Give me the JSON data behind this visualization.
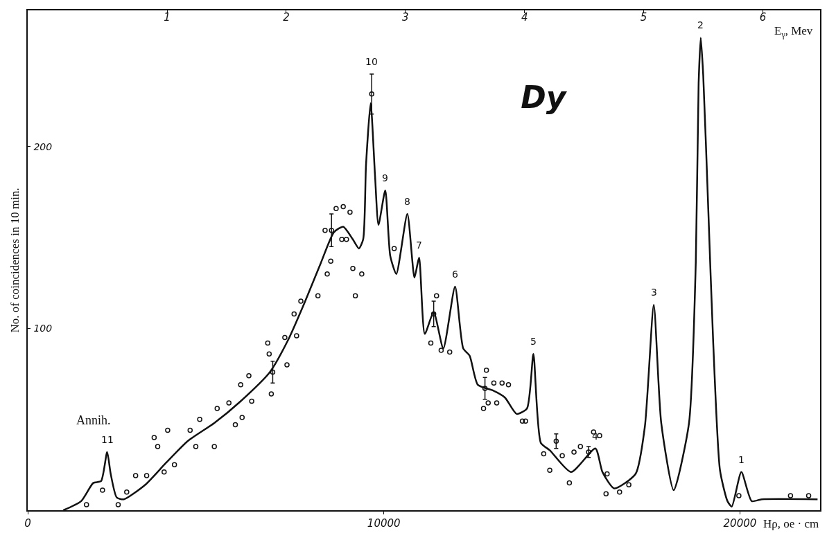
{
  "chart_data": {
    "type": "line",
    "title": "Dy",
    "xlabel": "Hρ, oe · cm",
    "ylabel": "No. of coincidences in 10 min.",
    "x2label": "E$_{γ}$, Mev",
    "xlim": [
      0,
      22250
    ],
    "xticks": [
      0,
      10000,
      20000
    ],
    "x2lim": [
      -0.17,
      6.48
    ],
    "x2ticks": [
      1,
      2,
      3,
      4,
      5,
      6
    ],
    "ylim": [
      0,
      275
    ],
    "yticks": [
      100,
      200
    ],
    "series": [
      {
        "color": "#111111",
        "marker": "none",
        "line_style": "solid",
        "x": [
          1000,
          1500,
          1840,
          2060,
          2230,
          2330,
          2500,
          2700,
          3300,
          3880,
          4490,
          5240,
          5980,
          6800,
          7320,
          7770,
          8230,
          8600,
          8860,
          9130,
          9300,
          9420,
          9500,
          9630,
          9750,
          9850,
          10040,
          10180,
          10350,
          10660,
          10860,
          10990,
          11150,
          11400,
          11670,
          12000,
          12230,
          12410,
          12640,
          13050,
          13400,
          13730,
          14020,
          14200,
          14410,
          14660,
          15260,
          15940,
          16140,
          16470,
          17070,
          17330,
          17580,
          17790,
          18140,
          18570,
          18760,
          18840,
          18900,
          18970,
          19110,
          19250,
          19440,
          19650,
          19770,
          20040,
          20330,
          20610,
          22180
        ],
        "values": [
          0,
          5,
          15,
          16,
          32,
          20,
          7,
          6,
          14,
          26,
          38,
          48,
          60,
          76,
          94,
          114,
          136,
          153,
          156,
          149,
          144,
          149,
          190,
          224,
          185,
          157,
          176,
          140,
          130,
          163,
          128,
          139,
          97,
          109,
          89,
          123,
          89,
          85,
          69,
          66,
          62,
          53,
          56,
          86,
          37,
          33,
          21,
          34,
          21,
          12,
          20,
          46,
          113,
          48,
          11,
          48,
          136,
          235,
          260,
          239,
          166,
          92,
          22,
          5,
          2,
          21,
          5,
          6,
          6
        ]
      },
      {
        "type": "scatter",
        "color": "#111111",
        "marker": "circle",
        "x": [
          1650,
          2100,
          2540,
          2780,
          3030,
          3340,
          3550,
          3650,
          3930,
          3830,
          4120,
          4560,
          4720,
          4830,
          5240,
          5320,
          5650,
          5830,
          6020,
          5980,
          6210,
          6290,
          6740,
          6780,
          6840,
          7280,
          7220,
          7550,
          7670,
          7480,
          8150,
          8410,
          9200,
          9380,
          8350,
          8660,
          8860,
          9050,
          8510,
          8820,
          8950,
          9130,
          10290,
          11480,
          11610,
          11850,
          11320,
          12880,
          12800,
          12930,
          13170,
          13090,
          13320,
          13500,
          13890,
          13980,
          14490,
          14660,
          15010,
          15210,
          15340,
          15520,
          15890,
          16060,
          16270,
          16240,
          16620,
          16880,
          19970,
          21420,
          21930
        ],
        "values": [
          3,
          11,
          3,
          10,
          19,
          19,
          40,
          35,
          44,
          21,
          25,
          44,
          35,
          50,
          35,
          56,
          59,
          47,
          51,
          69,
          74,
          60,
          92,
          86,
          64,
          80,
          95,
          96,
          115,
          108,
          118,
          130,
          118,
          130,
          154,
          166,
          167,
          164,
          137,
          149,
          149,
          133,
          144,
          118,
          88,
          87,
          92,
          77,
          56,
          59,
          59,
          70,
          70,
          69,
          49,
          49,
          31,
          22,
          30,
          15,
          32,
          35,
          43,
          41,
          20,
          9,
          10,
          14,
          8,
          8,
          8
        ]
      },
      {
        "type": "scatter",
        "color": "#111111",
        "marker": "circle",
        "x": [
          6880,
          8530,
          9660,
          11400,
          12840,
          14840,
          15750
        ],
        "values": [
          76,
          154,
          229,
          108,
          67,
          38,
          32
        ],
        "errors": [
          6,
          9,
          11,
          7,
          6,
          4,
          3
        ]
      }
    ],
    "annotations": [
      {
        "text": "11",
        "x": 2230,
        "y": 32
      },
      {
        "text": "Annih.",
        "x": 2230,
        "y": 32
      },
      {
        "text": "10",
        "x": 9660,
        "y": 240
      },
      {
        "text": "9",
        "x": 10040,
        "y": 176
      },
      {
        "text": "8",
        "x": 10660,
        "y": 163
      },
      {
        "text": "7",
        "x": 10990,
        "y": 139
      },
      {
        "text": "6",
        "x": 12000,
        "y": 123
      },
      {
        "text": "5",
        "x": 14200,
        "y": 86
      },
      {
        "text": "4",
        "x": 15940,
        "y": 34
      },
      {
        "text": "3",
        "x": 17580,
        "y": 113
      },
      {
        "text": "2",
        "x": 18900,
        "y": 260
      },
      {
        "text": "1",
        "x": 20040,
        "y": 21
      }
    ]
  }
}
